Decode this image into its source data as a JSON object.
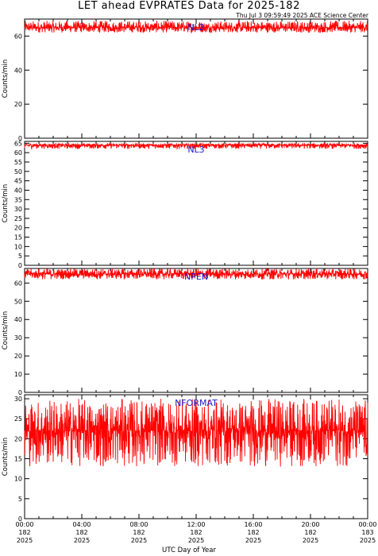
{
  "header": {
    "title": "LET ahead EVPRATES Data for 2025-182",
    "timestamp": "Thu Jul  3 09:59:49 2025 ACE Science Center"
  },
  "colors": {
    "series": "#ff0000",
    "label": "#1a1acc",
    "axes": "#000000"
  },
  "chart_data": [
    {
      "type": "line",
      "series": [
        {
          "name": "NL2",
          "y_mean": 65,
          "y_range": [
            62,
            69
          ]
        }
      ],
      "ylabel": "Counts/min",
      "ylim": [
        0,
        70
      ],
      "yticks": [
        "0",
        "20",
        "40",
        "60"
      ],
      "xlim_hours": [
        0,
        24
      ],
      "grid": false
    },
    {
      "type": "line",
      "series": [
        {
          "name": "NL3",
          "y_mean": 64,
          "y_range": [
            62,
            65
          ]
        }
      ],
      "ylabel": "Counts/min",
      "ylim": [
        0,
        66
      ],
      "yticks": [
        "0",
        "5",
        "10",
        "15",
        "20",
        "25",
        "30",
        "35",
        "40",
        "45",
        "50",
        "55",
        "60",
        "65"
      ],
      "xlim_hours": [
        0,
        24
      ],
      "grid": false
    },
    {
      "type": "line",
      "series": [
        {
          "name": "NPEN",
          "y_mean": 65,
          "y_range": [
            62,
            68
          ]
        }
      ],
      "ylabel": "Counts/min",
      "ylim": [
        0,
        68
      ],
      "yticks": [
        "0",
        "10",
        "20",
        "30",
        "40",
        "50",
        "60"
      ],
      "xlim_hours": [
        0,
        24
      ],
      "grid": false
    },
    {
      "type": "line",
      "series": [
        {
          "name": "NFORMAT",
          "y_mean": 22,
          "y_range": [
            13,
            30
          ]
        }
      ],
      "ylabel": "Counts/min",
      "ylim": [
        0,
        31
      ],
      "yticks": [
        "0",
        "5",
        "10",
        "15",
        "20",
        "25",
        "30"
      ],
      "xlim_hours": [
        0,
        24
      ],
      "grid": false,
      "xlabel": "UTC Day of Year",
      "xticks": [
        {
          "time": "00:00",
          "doy": "182",
          "year": "2025"
        },
        {
          "time": "04:00",
          "doy": "182",
          "year": "2025"
        },
        {
          "time": "08:00",
          "doy": "182",
          "year": "2025"
        },
        {
          "time": "12:00",
          "doy": "182",
          "year": "2025"
        },
        {
          "time": "16:00",
          "doy": "182",
          "year": "2025"
        },
        {
          "time": "20:00",
          "doy": "182",
          "year": "2025"
        },
        {
          "time": "00:00",
          "doy": "183",
          "year": "2025"
        }
      ]
    }
  ]
}
